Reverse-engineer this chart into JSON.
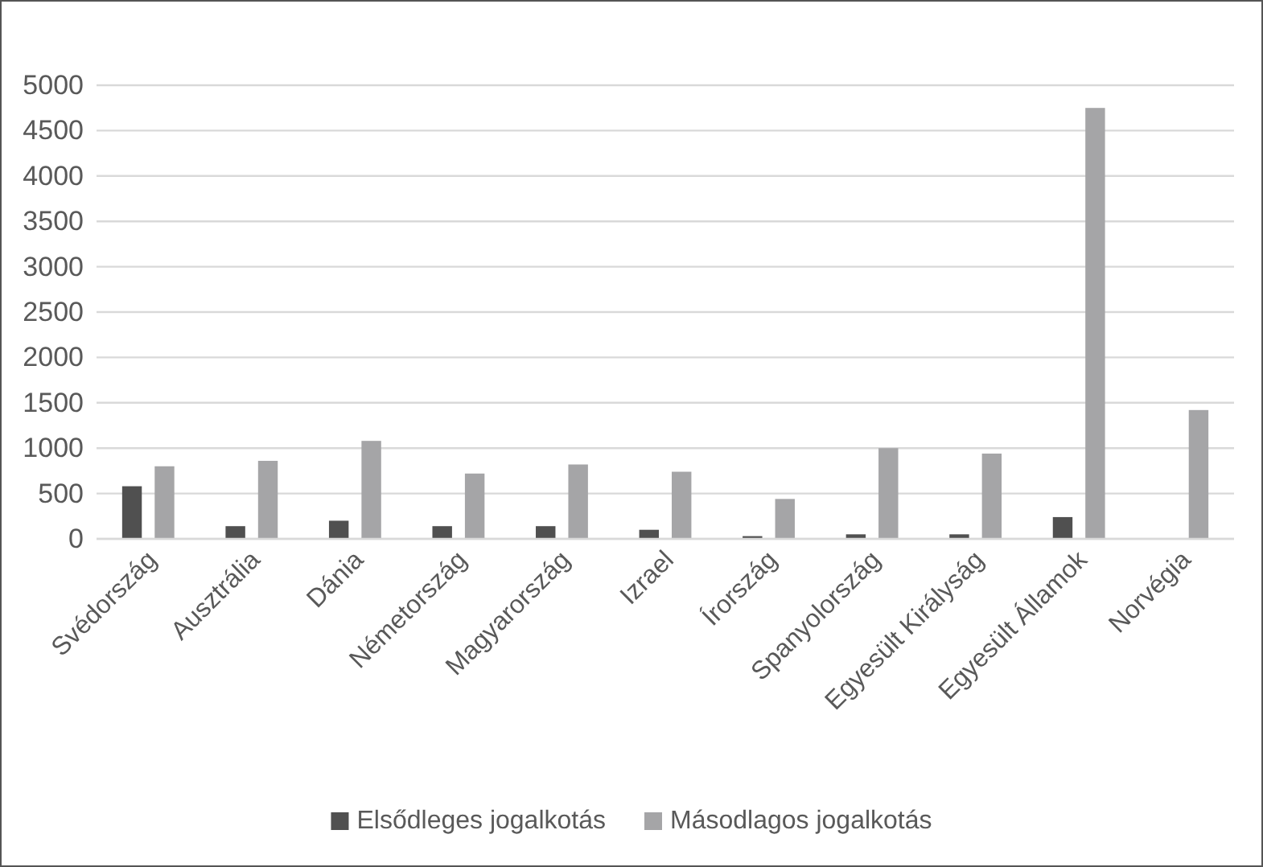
{
  "chart_data": {
    "type": "bar",
    "categories": [
      "Svédország",
      "Ausztrália",
      "Dánia",
      "Németország",
      "Magyarország",
      "Izrael",
      "Írország",
      "Spanyolország",
      "Egyesült Királyság",
      "Egyesült Államok",
      "Norvégia"
    ],
    "series": [
      {
        "name": "Elsődleges jogalkotás",
        "color": "#505050",
        "values": [
          580,
          140,
          200,
          140,
          140,
          100,
          30,
          50,
          50,
          240,
          null
        ]
      },
      {
        "name": "Másodlagos jogalkotás",
        "color": "#a5a5a7",
        "values": [
          800,
          860,
          1080,
          720,
          820,
          740,
          440,
          1000,
          940,
          4750,
          1420
        ]
      }
    ],
    "ylim": [
      0,
      5000
    ],
    "yticks": [
      0,
      500,
      1000,
      1500,
      2000,
      2500,
      3000,
      3500,
      4000,
      4500,
      5000
    ],
    "grid": "y",
    "legend": "bottom"
  }
}
